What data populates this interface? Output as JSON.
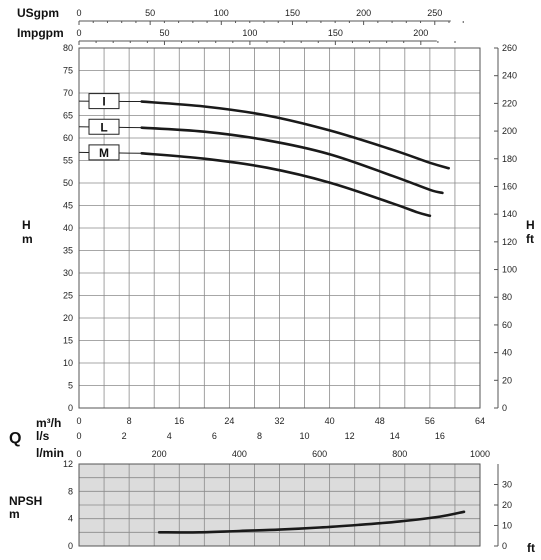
{
  "chart_data": [
    {
      "id": "head",
      "type": "line",
      "xlabel": "m³/h",
      "xlim": [
        0,
        64
      ],
      "ylim": [
        0,
        80
      ],
      "y2lim": [
        0,
        260
      ],
      "grid": true,
      "y_label": {
        "quantity": "H",
        "unit": "m"
      },
      "y2_label": {
        "quantity": "H",
        "unit": "ft"
      },
      "y_ticks": [
        0,
        5,
        10,
        15,
        20,
        25,
        30,
        35,
        40,
        45,
        50,
        55,
        60,
        65,
        70,
        75,
        80
      ],
      "y2_ticks": [
        0,
        20,
        40,
        60,
        80,
        100,
        120,
        140,
        160,
        180,
        200,
        220,
        240,
        260
      ],
      "top_axes": [
        {
          "label": "USgpm",
          "ticks": [
            0,
            50,
            100,
            150,
            200,
            250
          ]
        },
        {
          "label": "Impgpm",
          "ticks": [
            0,
            50,
            100,
            150,
            200
          ]
        }
      ],
      "series": [
        {
          "name": "I",
          "x": [
            0,
            10,
            20,
            30,
            40,
            50,
            56,
            59
          ],
          "y": [
            68.2,
            68.1,
            67,
            65,
            61.7,
            57.4,
            54.5,
            53.3
          ]
        },
        {
          "name": "L",
          "x": [
            0,
            10,
            20,
            30,
            40,
            50,
            56,
            58
          ],
          "y": [
            62.5,
            62.3,
            61.4,
            59.5,
            56.4,
            51.6,
            48.5,
            47.8
          ]
        },
        {
          "name": "M",
          "x": [
            0,
            10,
            20,
            30,
            40,
            50,
            54,
            56
          ],
          "y": [
            56.8,
            56.6,
            55.4,
            53.4,
            50.1,
            45.5,
            43.5,
            42.7
          ]
        }
      ]
    },
    {
      "id": "npsh",
      "type": "line",
      "xlim": [
        0,
        1000
      ],
      "ylim": [
        0,
        12
      ],
      "y2lim": [
        0,
        40
      ],
      "grid": true,
      "y_label": {
        "quantity": "NPSH",
        "unit": "m"
      },
      "y2_label": {
        "unit": "ft"
      },
      "y_ticks": [
        0,
        4,
        8,
        12
      ],
      "y2_ticks": [
        0,
        10,
        20,
        30
      ],
      "series": [
        {
          "x": [
            200,
            300,
            400,
            500,
            600,
            700,
            800,
            900,
            960
          ],
          "y": [
            2,
            2,
            2.2,
            2.4,
            2.7,
            3.1,
            3.6,
            4.3,
            5
          ]
        }
      ]
    }
  ],
  "flow_axes": {
    "q_label": "Q",
    "m3h": {
      "label": "m³/h",
      "ticks": [
        0,
        8,
        16,
        24,
        32,
        40,
        48,
        56,
        64
      ]
    },
    "ls": {
      "label": "l/s",
      "ticks": [
        0,
        2,
        4,
        6,
        8,
        10,
        12,
        14,
        16
      ]
    },
    "lmin": {
      "label": "l/min",
      "ticks": [
        0,
        200,
        400,
        600,
        800,
        1000
      ]
    }
  }
}
